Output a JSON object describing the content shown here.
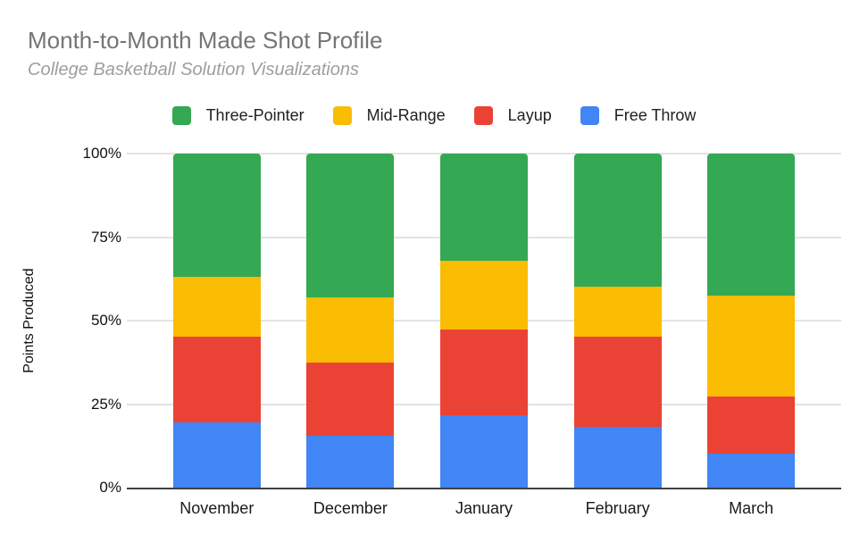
{
  "header": {
    "title": "Month-to-Month Made Shot Profile",
    "subtitle": "College Basketball Solution Visualizations"
  },
  "chart_data": {
    "type": "bar",
    "stacked": true,
    "stacked_mode": "percent",
    "title": "Month-to-Month Made Shot Profile",
    "subtitle": "College Basketball Solution Visualizations",
    "xlabel": "",
    "ylabel": "Points Produced",
    "categories": [
      "November",
      "December",
      "January",
      "February",
      "March"
    ],
    "series": [
      {
        "name": "Three-Pointer",
        "color": "#34A853",
        "values": [
          36.8,
          43.0,
          32.1,
          39.9,
          42.6
        ]
      },
      {
        "name": "Mid-Range",
        "color": "#FBBC04",
        "values": [
          18.1,
          19.6,
          20.7,
          15.0,
          30.0
        ]
      },
      {
        "name": "Layup",
        "color": "#EA4335",
        "values": [
          25.5,
          21.8,
          25.5,
          26.8,
          17.2
        ]
      },
      {
        "name": "Free Throw",
        "color": "#4285F4",
        "values": [
          19.6,
          15.6,
          21.7,
          18.3,
          10.2
        ]
      }
    ],
    "y_ticks": [
      "100%",
      "75%",
      "50%",
      "25%",
      "0%"
    ],
    "ylim": [
      0,
      100
    ],
    "grid": true,
    "legend_position": "top",
    "bar_center_percents": [
      12.6,
      31.3,
      50.0,
      68.7,
      87.4
    ]
  },
  "colors": {
    "three_pointer": "#34A853",
    "mid_range": "#FBBC04",
    "layup": "#EA4335",
    "free_throw": "#4285F4",
    "gridline": "#e3e3e3",
    "axis_line": "#3c4043",
    "title_text": "#757575",
    "subtitle_text": "#9e9e9e",
    "axis_text": "#111111"
  }
}
